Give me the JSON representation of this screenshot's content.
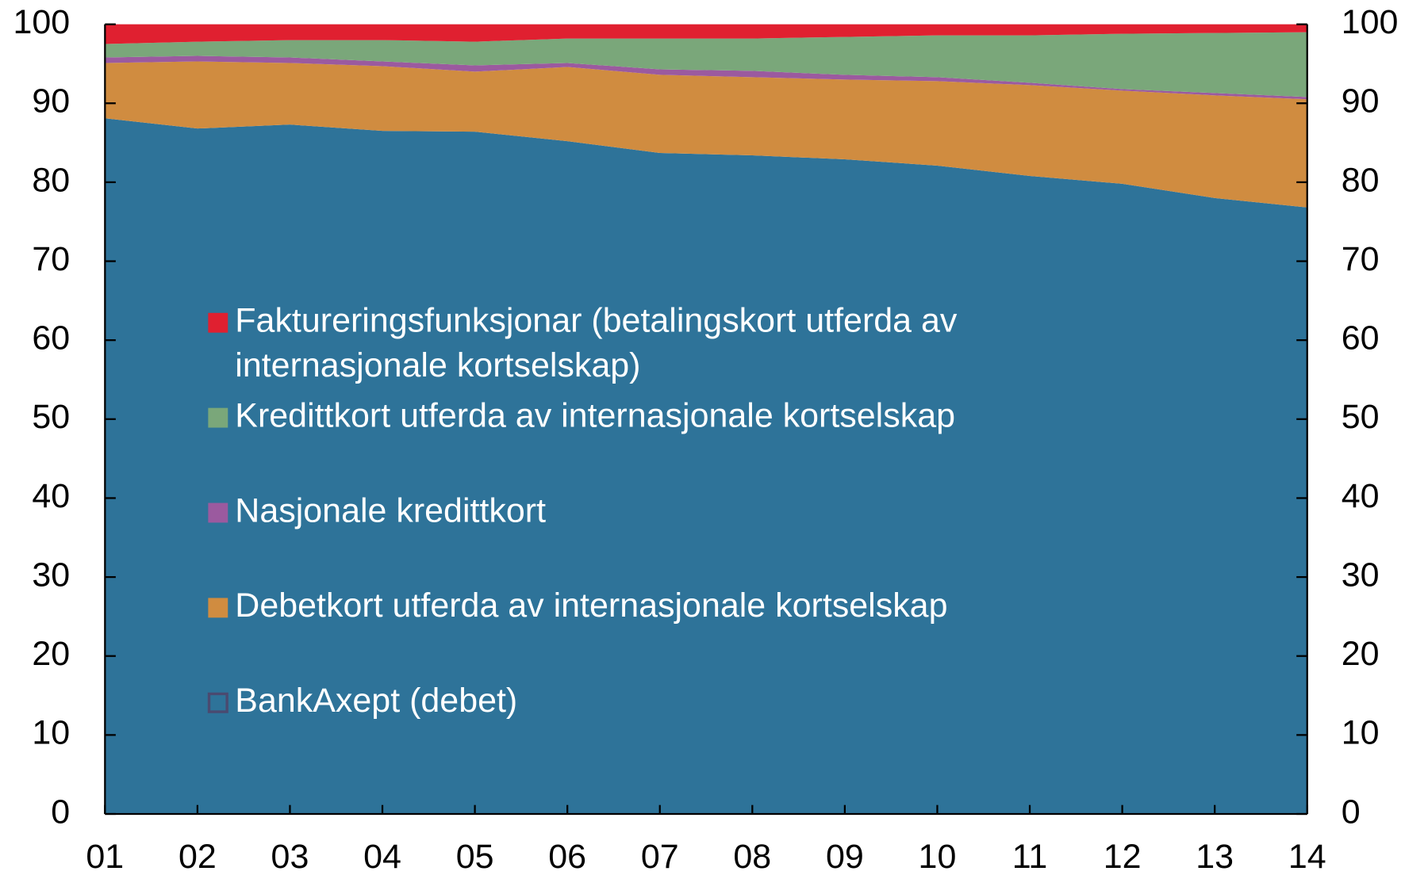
{
  "chart_data": {
    "type": "stacked_area",
    "categories": [
      "01",
      "02",
      "03",
      "04",
      "05",
      "06",
      "07",
      "08",
      "09",
      "10",
      "11",
      "12",
      "13",
      "14"
    ],
    "series": [
      {
        "name": "BankAxept (debet)",
        "color": "#2e7399",
        "values": [
          88.1,
          86.8,
          87.3,
          86.5,
          86.4,
          85.2,
          83.7,
          83.4,
          82.9,
          82.1,
          80.8,
          79.8,
          78.0,
          76.8
        ]
      },
      {
        "name": "Debetkort utferda av internasjonale kortselskap",
        "color": "#d08c40",
        "values": [
          7.0,
          8.5,
          7.8,
          8.2,
          7.6,
          9.4,
          9.9,
          9.9,
          10.1,
          10.7,
          11.5,
          11.8,
          13.0,
          13.7
        ]
      },
      {
        "name": "Nasjonale kredittkort",
        "color": "#9b5a9f",
        "values": [
          0.7,
          0.7,
          0.7,
          0.6,
          0.8,
          0.5,
          0.7,
          0.8,
          0.6,
          0.5,
          0.3,
          0.2,
          0.3,
          0.3
        ]
      },
      {
        "name": "Kredittkort utferda av internasjonale kortselskap",
        "color": "#7aa77a",
        "values": [
          1.7,
          1.8,
          2.2,
          2.7,
          3.0,
          3.1,
          3.9,
          4.1,
          4.8,
          5.3,
          6.0,
          7.0,
          7.6,
          8.2
        ]
      },
      {
        "name": "Faktureringsfunksjonar (betalingskort utferda av internasjonale kortselskap)",
        "color": "#e02030",
        "values": [
          2.5,
          2.2,
          2.0,
          2.0,
          2.2,
          1.8,
          1.8,
          1.8,
          1.6,
          1.4,
          1.4,
          1.2,
          1.1,
          1.0
        ]
      }
    ],
    "ylim": [
      0,
      100
    ],
    "yticks": [
      0,
      10,
      20,
      30,
      40,
      50,
      60,
      70,
      80,
      90,
      100
    ],
    "y2lim": [
      0,
      100
    ],
    "y2ticks": [
      0,
      10,
      20,
      30,
      40,
      50,
      60,
      70,
      80,
      90,
      100
    ]
  }
}
